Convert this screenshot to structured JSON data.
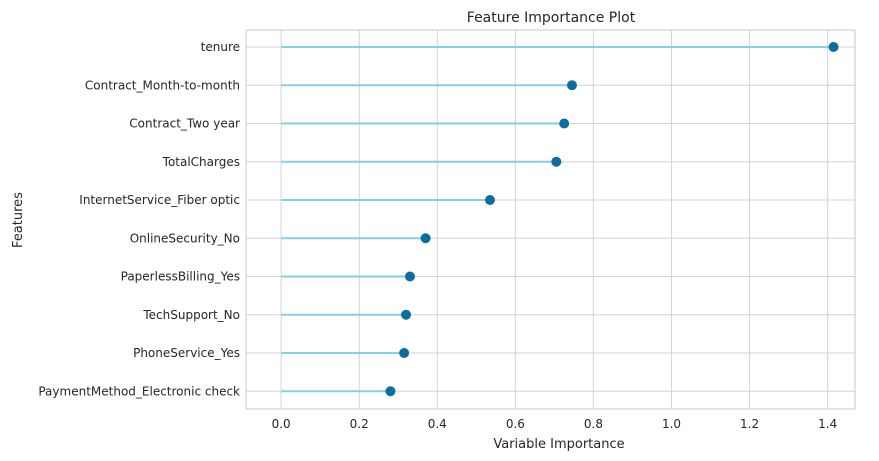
{
  "chart_data": {
    "type": "lollipop",
    "title": "Feature Importance Plot",
    "xlabel": "Variable Importance",
    "ylabel": "Features",
    "xlim": [
      -0.09,
      1.47
    ],
    "xticks": [
      0.0,
      0.2,
      0.4,
      0.6,
      0.8,
      1.0,
      1.2,
      1.4
    ],
    "xtick_labels": [
      "0.0",
      "0.2",
      "0.4",
      "0.6",
      "0.8",
      "1.0",
      "1.2",
      "1.4"
    ],
    "grid": true,
    "colors": {
      "stem": "#87ceeb",
      "marker": "#0b6e9e",
      "grid": "#d3d3d3",
      "frame": "#d3d3d3"
    },
    "categories": [
      "tenure",
      "Contract_Month-to-month",
      "Contract_Two year",
      "TotalCharges",
      "InternetService_Fiber optic",
      "OnlineSecurity_No",
      "PaperlessBilling_Yes",
      "TechSupport_No",
      "PhoneService_Yes",
      "PaymentMethod_Electronic check"
    ],
    "values": [
      1.415,
      0.745,
      0.725,
      0.705,
      0.535,
      0.37,
      0.33,
      0.32,
      0.315,
      0.28
    ]
  }
}
